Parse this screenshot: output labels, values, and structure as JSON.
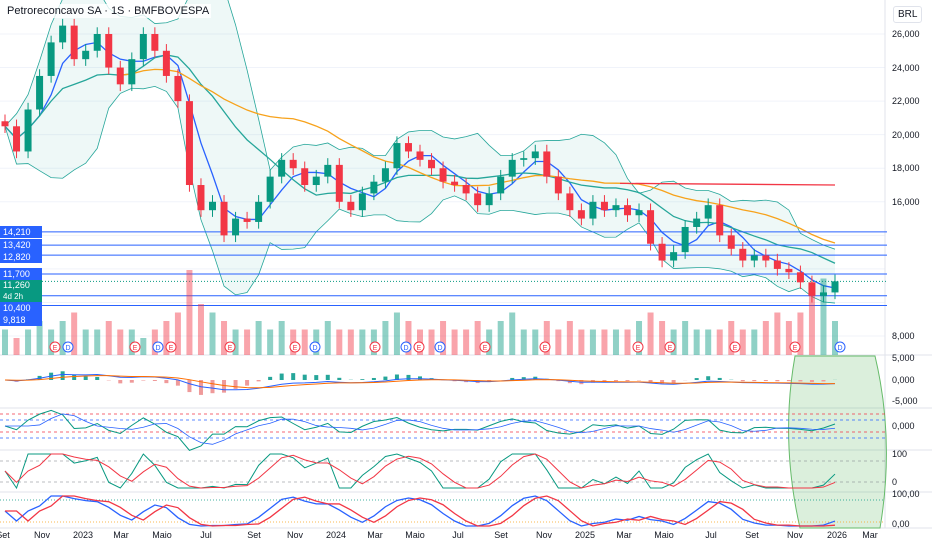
{
  "title": "Petroreconcavo SA · 1S · BMFBOVESPA",
  "currency": "BRL",
  "price_axis": [
    "26,000",
    "24,000",
    "22,000",
    "20,000",
    "18,000",
    "16,000",
    "8,000"
  ],
  "levels": [
    {
      "label": "14,210",
      "value": 14.21
    },
    {
      "label": "13,420",
      "value": 13.42
    },
    {
      "label": "12,820",
      "value": 12.82
    },
    {
      "label": "11,700",
      "value": 11.7
    },
    {
      "label": "10,400",
      "value": 10.4
    },
    {
      "label": "9,818",
      "value": 9.818
    }
  ],
  "last_price": {
    "label": "11,260",
    "countdown": "4d 2h",
    "value": 11.26
  },
  "macd_axis": [
    "5,000",
    "0,000",
    "-5,000"
  ],
  "osc2_axis": [
    "0,000"
  ],
  "stoch_axis": [
    "100",
    "0"
  ],
  "osc4_axis": [
    "100,00",
    "0,00"
  ],
  "x_axis": [
    "Set",
    "Nov",
    "2023",
    "Mar",
    "Maio",
    "Jul",
    "Set",
    "Nov",
    "2024",
    "Mar",
    "Maio",
    "Jul",
    "Set",
    "Nov",
    "2025",
    "Mar",
    "Maio",
    "Jul",
    "Set",
    "Nov",
    "2026",
    "Mar"
  ],
  "events": {
    "earnings": "E",
    "dividend": "D"
  },
  "colors": {
    "up": "#089981",
    "down": "#f23645",
    "level": "#2962ff",
    "ma_fast": "#2962ff",
    "ma_mid": "#26a69a",
    "ma_slow": "#f7a21b",
    "band": "#26a69a"
  },
  "chart_data": {
    "type": "candlestick",
    "closes": [
      20.5,
      19.0,
      21.5,
      23.5,
      25.5,
      26.5,
      24.5,
      25.0,
      26.0,
      24.0,
      23.0,
      24.5,
      26.0,
      25.0,
      23.5,
      22.0,
      17.0,
      15.5,
      16.0,
      14.0,
      15.0,
      14.8,
      16.0,
      17.5,
      18.5,
      18.0,
      17.0,
      17.5,
      18.2,
      16.0,
      15.5,
      16.5,
      17.2,
      18.0,
      19.5,
      19.0,
      18.5,
      18.0,
      17.2,
      17.0,
      16.5,
      15.8,
      16.5,
      17.5,
      18.5,
      18.6,
      19.0,
      17.5,
      16.5,
      15.5,
      15.0,
      16.0,
      15.5,
      15.8,
      15.2,
      15.5,
      13.5,
      12.5,
      13.0,
      14.5,
      15.0,
      15.8,
      14.0,
      13.2,
      12.5,
      12.8,
      12.5,
      12.0,
      11.8,
      11.2,
      10.4,
      10.6,
      11.26
    ],
    "volumes": [
      3,
      2,
      3,
      4,
      3,
      4,
      5,
      3,
      3,
      4,
      3,
      3,
      2,
      3,
      4,
      5,
      10,
      6,
      5,
      4,
      3,
      3,
      4,
      3,
      4,
      3,
      3,
      3,
      4,
      3,
      3,
      3,
      3,
      4,
      5,
      4,
      3,
      3,
      4,
      3,
      3,
      4,
      3,
      4,
      5,
      3,
      3,
      4,
      3,
      4,
      3,
      3,
      3,
      3,
      3,
      4,
      5,
      4,
      3,
      4,
      3,
      3,
      3,
      4,
      3,
      3,
      4,
      5,
      4,
      5,
      8,
      9,
      4
    ],
    "ylim": [
      8,
      26
    ]
  }
}
